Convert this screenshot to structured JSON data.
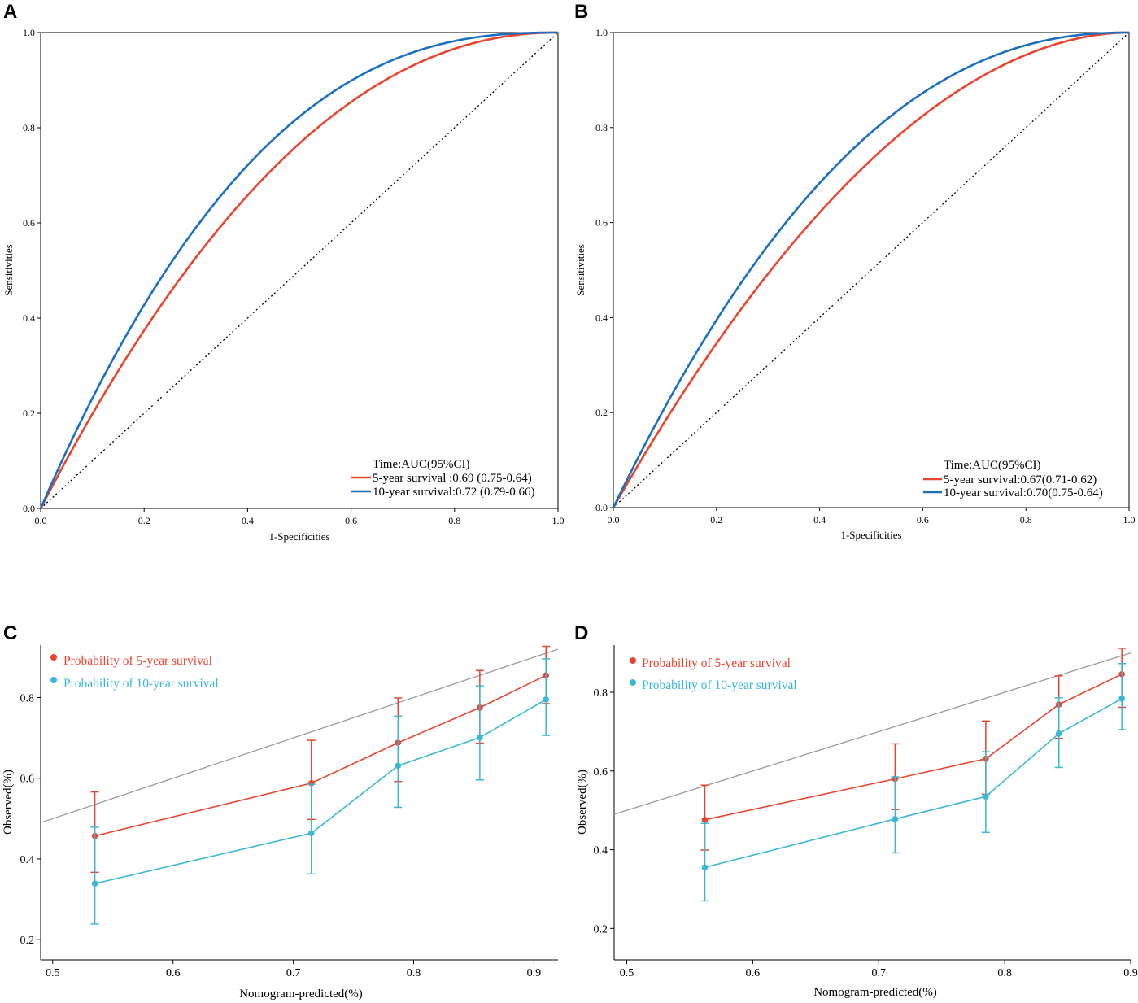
{
  "colors": {
    "red": "#e8442e",
    "blue": "#1a6fbf",
    "cyan": "#39b8d4",
    "gray": "#9a9a9a"
  },
  "chart_data": [
    {
      "panel": "A",
      "type": "line",
      "xlabel": "1-Specificities",
      "ylabel": "Sensitivities",
      "xlim": [
        0,
        1
      ],
      "ylim": [
        0,
        1
      ],
      "xticks": [
        "0.0",
        "0.2",
        "0.4",
        "0.6",
        "0.8",
        "1.0"
      ],
      "yticks": [
        "0.0",
        "0.2",
        "0.4",
        "0.6",
        "0.8",
        "1.0"
      ],
      "legend_title": "Time:AUC(95%CI)",
      "legend_position": "bottom-right",
      "diagonal": "dotted",
      "series": [
        {
          "name": "5-year survival :0.69 (0.75-0.64)",
          "color": "red",
          "k": 2.1
        },
        {
          "name": "10-year survival:0.72 (0.79-0.66)",
          "color": "blue",
          "k": 2.5
        }
      ]
    },
    {
      "panel": "B",
      "type": "line",
      "xlabel": "1-Specificities",
      "ylabel": "Sensitivities",
      "xlim": [
        0,
        1
      ],
      "ylim": [
        0,
        1
      ],
      "xticks": [
        "0.0",
        "0.2",
        "0.4",
        "0.6",
        "0.8",
        "1.0"
      ],
      "yticks": [
        "0.0",
        "0.2",
        "0.4",
        "0.6",
        "0.8",
        "1.0"
      ],
      "legend_title": "Time:AUC(95%CI)",
      "legend_position": "bottom-right",
      "diagonal": "dotted",
      "series": [
        {
          "name": "5-year survival:0.67(0.71-0.62)",
          "color": "red",
          "k": 1.9
        },
        {
          "name": "10-year survival:0.70(0.75-0.64)",
          "color": "blue",
          "k": 2.25
        }
      ]
    },
    {
      "panel": "C",
      "type": "line",
      "xlabel": "Nomogram-predicted(%)",
      "ylabel": "Observed(%)",
      "xlim": [
        0.49,
        0.92
      ],
      "ylim": [
        0.15,
        0.93
      ],
      "xticks": [
        "0.5",
        "0.6",
        "0.7",
        "0.8",
        "0.9"
      ],
      "yticks": [
        "0.2",
        "0.4",
        "0.6",
        "0.8"
      ],
      "legend_position": "top-left",
      "reference_line": "diagonal",
      "series": [
        {
          "name": "Probability of 5-year survival",
          "color": "red",
          "x": [
            0.535,
            0.715,
            0.787,
            0.855,
            0.91
          ],
          "y": [
            0.457,
            0.588,
            0.688,
            0.775,
            0.855
          ],
          "lower": [
            0.367,
            0.498,
            0.592,
            0.687,
            0.785
          ],
          "upper": [
            0.566,
            0.694,
            0.799,
            0.867,
            0.927
          ]
        },
        {
          "name": "Probability of 10-year survival",
          "color": "cyan",
          "x": [
            0.535,
            0.715,
            0.787,
            0.855,
            0.91
          ],
          "y": [
            0.339,
            0.464,
            0.631,
            0.701,
            0.795
          ],
          "lower": [
            0.239,
            0.363,
            0.528,
            0.596,
            0.706
          ],
          "upper": [
            0.479,
            0.585,
            0.754,
            0.829,
            0.896
          ]
        }
      ]
    },
    {
      "panel": "D",
      "type": "line",
      "xlabel": "Nomogram-predicted(%)",
      "ylabel": "Observed(%)",
      "xlim": [
        0.49,
        0.9
      ],
      "ylim": [
        0.12,
        0.92
      ],
      "xticks": [
        "0.5",
        "0.6",
        "0.7",
        "0.8",
        "0.9"
      ],
      "yticks": [
        "0.2",
        "0.4",
        "0.6",
        "0.8"
      ],
      "legend_position": "top-left",
      "reference_line": "diagonal",
      "series": [
        {
          "name": "Probability of 5-year survival",
          "color": "red",
          "x": [
            0.562,
            0.713,
            0.785,
            0.843,
            0.893
          ],
          "y": [
            0.476,
            0.58,
            0.631,
            0.769,
            0.846
          ],
          "lower": [
            0.399,
            0.502,
            0.541,
            0.683,
            0.762
          ],
          "upper": [
            0.564,
            0.669,
            0.727,
            0.842,
            0.912
          ]
        },
        {
          "name": "Probability of 10-year survival",
          "color": "cyan",
          "x": [
            0.562,
            0.713,
            0.785,
            0.843,
            0.893
          ],
          "y": [
            0.355,
            0.478,
            0.535,
            0.695,
            0.784
          ],
          "lower": [
            0.27,
            0.392,
            0.444,
            0.609,
            0.705
          ],
          "upper": [
            0.467,
            0.585,
            0.649,
            0.786,
            0.873
          ]
        }
      ]
    }
  ]
}
